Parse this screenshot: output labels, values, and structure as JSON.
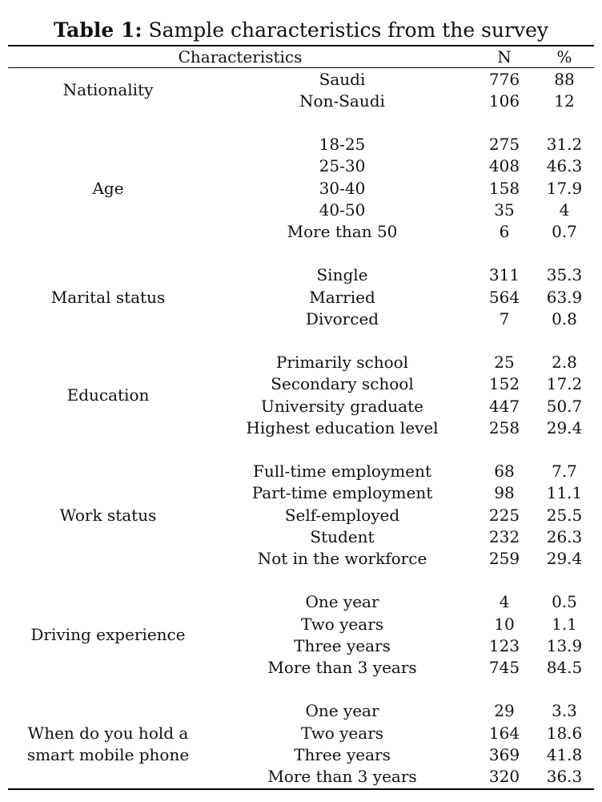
{
  "title": {
    "prefix": "Table 1:",
    "text": " Sample characteristics from the survey"
  },
  "header": {
    "characteristics": "Characteristics",
    "n": "N",
    "pct": "%"
  },
  "groups": [
    {
      "label": [
        "Nationality"
      ],
      "rows": [
        {
          "label": "Saudi",
          "n": "776",
          "pct": "88"
        },
        {
          "label": "Non-Saudi",
          "n": "106",
          "pct": "12"
        }
      ]
    },
    {
      "label": [
        "Age"
      ],
      "rows": [
        {
          "label": "18-25",
          "n": "275",
          "pct": "31.2"
        },
        {
          "label": "25-30",
          "n": "408",
          "pct": "46.3"
        },
        {
          "label": "30-40",
          "n": "158",
          "pct": "17.9"
        },
        {
          "label": "40-50",
          "n": "35",
          "pct": "4"
        },
        {
          "label": "More than 50",
          "n": "6",
          "pct": "0.7"
        }
      ]
    },
    {
      "label": [
        "Marital status"
      ],
      "rows": [
        {
          "label": "Single",
          "n": "311",
          "pct": "35.3"
        },
        {
          "label": "Married",
          "n": "564",
          "pct": "63.9"
        },
        {
          "label": "Divorced",
          "n": "7",
          "pct": "0.8"
        }
      ]
    },
    {
      "label": [
        "Education"
      ],
      "rows": [
        {
          "label": "Primarily school",
          "n": "25",
          "pct": "2.8"
        },
        {
          "label": "Secondary school",
          "n": "152",
          "pct": "17.2"
        },
        {
          "label": "University graduate",
          "n": "447",
          "pct": "50.7"
        },
        {
          "label": "Highest education level",
          "n": "258",
          "pct": "29.4"
        }
      ]
    },
    {
      "label": [
        "Work status"
      ],
      "rows": [
        {
          "label": "Full-time employment",
          "n": "68",
          "pct": "7.7"
        },
        {
          "label": "Part-time employment",
          "n": "98",
          "pct": "11.1"
        },
        {
          "label": "Self-employed",
          "n": "225",
          "pct": "25.5"
        },
        {
          "label": "Student",
          "n": "232",
          "pct": "26.3"
        },
        {
          "label": "Not in the workforce",
          "n": "259",
          "pct": "29.4"
        }
      ]
    },
    {
      "label": [
        "Driving experience"
      ],
      "rows": [
        {
          "label": "One year",
          "n": "4",
          "pct": "0.5"
        },
        {
          "label": "Two years",
          "n": "10",
          "pct": "1.1"
        },
        {
          "label": "Three years",
          "n": "123",
          "pct": "13.9"
        },
        {
          "label": "More than 3 years",
          "n": "745",
          "pct": "84.5"
        }
      ]
    },
    {
      "label": [
        "When do you hold a",
        "smart mobile phone"
      ],
      "rows": [
        {
          "label": "One year",
          "n": "29",
          "pct": "3.3"
        },
        {
          "label": "Two years",
          "n": "164",
          "pct": "18.6"
        },
        {
          "label": "Three years",
          "n": "369",
          "pct": "41.8"
        },
        {
          "label": "More than 3 years",
          "n": "320",
          "pct": "36.3"
        }
      ]
    }
  ]
}
